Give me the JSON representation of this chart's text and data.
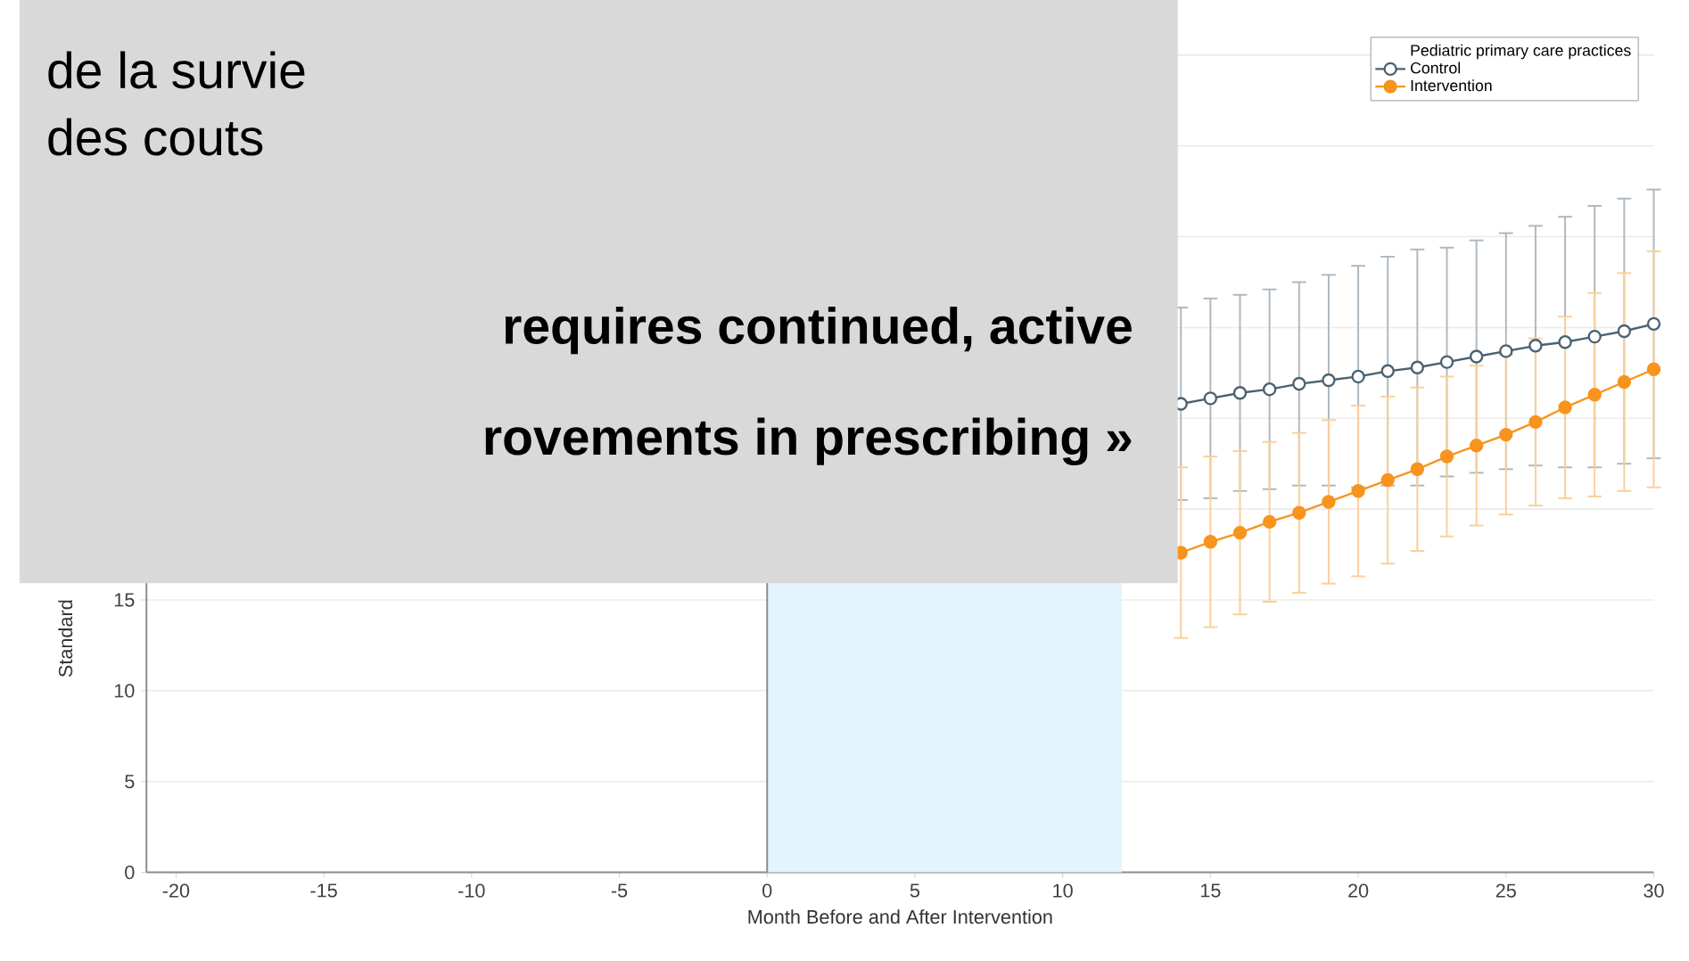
{
  "chart_data": {
    "type": "line",
    "xlabel": "Month Before and After Intervention",
    "ylabel": "Standard",
    "legend_title": "Pediatric primary care practices",
    "x": [
      14,
      15,
      16,
      17,
      18,
      19,
      20,
      21,
      22,
      23,
      24,
      25,
      26,
      27,
      28,
      29,
      30
    ],
    "series": [
      {
        "name": "Control",
        "color": "#4a6272",
        "values": [
          25.8,
          26.1,
          26.4,
          26.6,
          26.9,
          27.1,
          27.3,
          27.6,
          27.8,
          28.1,
          28.4,
          28.7,
          29.0,
          29.2,
          29.5,
          29.8,
          30.2
        ],
        "errors": [
          5.3,
          5.5,
          5.4,
          5.5,
          5.6,
          5.8,
          6.1,
          6.3,
          6.5,
          6.3,
          6.4,
          6.5,
          6.6,
          6.9,
          7.2,
          7.3,
          7.4
        ]
      },
      {
        "name": "Intervention",
        "color": "#f7941d",
        "values": [
          17.6,
          18.2,
          18.7,
          19.3,
          19.8,
          20.4,
          21.0,
          21.6,
          22.2,
          22.9,
          23.5,
          24.1,
          24.8,
          25.6,
          26.3,
          27.0,
          27.7
        ],
        "errors": [
          4.7,
          4.7,
          4.5,
          4.4,
          4.4,
          4.5,
          4.7,
          4.6,
          4.5,
          4.4,
          4.4,
          4.4,
          4.6,
          5.0,
          5.6,
          6.0,
          6.5
        ]
      }
    ],
    "xlim": [
      -21,
      30
    ],
    "xticks": [
      -20,
      -15,
      -10,
      -5,
      0,
      5,
      10,
      15,
      20,
      25,
      30
    ],
    "ylim": [
      0,
      46
    ],
    "yticks": [
      0,
      5,
      10,
      15,
      {
        "value": 20,
        "label": null
      },
      {
        "value": 25,
        "label": null
      },
      {
        "value": 30,
        "label": null
      },
      {
        "value": 35,
        "label": null
      },
      {
        "value": 40,
        "label": null
      },
      {
        "value": 45,
        "label": null
      }
    ],
    "bands": [
      {
        "axis": "x",
        "from": 0,
        "to": 12,
        "color": "#e3f4fd"
      }
    ],
    "ref_lines": [
      {
        "axis": "x",
        "value": 0,
        "color": "#8c8c8c"
      }
    ],
    "grid": "y",
    "legend": "top right",
    "marker": "circle",
    "annotations": [
      "de la survie",
      "des couts",
      "requires continued, active",
      "rovements in prescribing »"
    ]
  }
}
